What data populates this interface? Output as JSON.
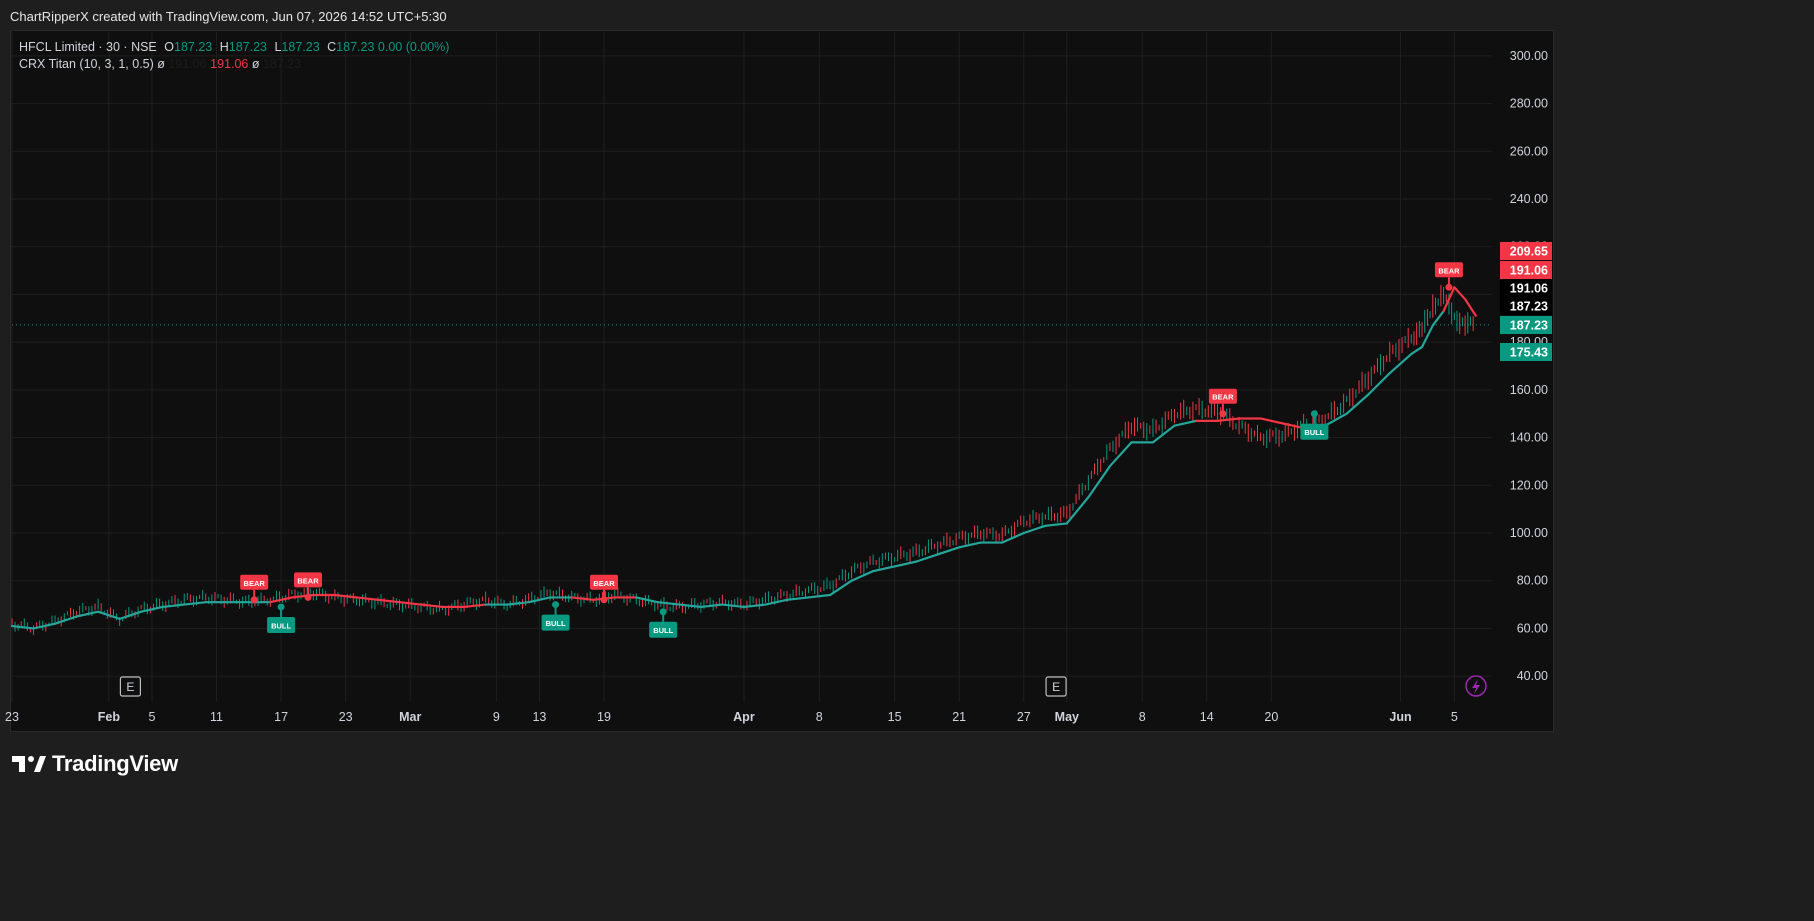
{
  "caption": "ChartRipperX created with TradingView.com, Jun 07, 2026 14:52 UTC+5:30",
  "legend": {
    "symbol": "HFCL Limited · 30 · NSE",
    "o_label": "O",
    "o": "187.23",
    "h_label": "H",
    "h": "187.23",
    "l_label": "L",
    "l": "187.23",
    "c_label": "C",
    "c": "187.23",
    "change": "0.00 (0.00%)",
    "indicator": "CRX Titan (10, 3, 1, 0.5)",
    "ind_sym1": "ø",
    "ind_v1": "191.06",
    "ind_v2": "191.06",
    "ind_sym2": "ø",
    "ind_v3": "187.23"
  },
  "footer": {
    "brand": "TradingView"
  },
  "colors": {
    "up": "#089981",
    "down": "#f23645",
    "bg": "#0f0f0f",
    "grid": "#1f1f1f",
    "text": "#d1d4dc"
  },
  "chart_data": {
    "type": "line",
    "symbol": "HFCL Limited",
    "interval": "30",
    "exchange": "NSE",
    "ylim": [
      30,
      310
    ],
    "y_ticks": [
      40,
      60,
      80,
      100,
      120,
      140,
      160,
      180,
      200,
      220,
      240,
      260,
      280,
      300
    ],
    "y_tick_labels": [
      "40.00",
      "60.00",
      "80.00",
      "100.00",
      "120.00",
      "140.00",
      "160.00",
      "180.00",
      "200.00",
      "220.00",
      "240.00",
      "260.00",
      "280.00",
      "300.00"
    ],
    "x_ticks": [
      {
        "label": "23",
        "t": 0,
        "bold": false
      },
      {
        "label": "Feb",
        "t": 9,
        "bold": true
      },
      {
        "label": "5",
        "t": 13,
        "bold": false
      },
      {
        "label": "11",
        "t": 19,
        "bold": false
      },
      {
        "label": "17",
        "t": 25,
        "bold": false
      },
      {
        "label": "23",
        "t": 31,
        "bold": false
      },
      {
        "label": "Mar",
        "t": 37,
        "bold": true
      },
      {
        "label": "9",
        "t": 45,
        "bold": false
      },
      {
        "label": "13",
        "t": 49,
        "bold": false
      },
      {
        "label": "19",
        "t": 55,
        "bold": false
      },
      {
        "label": "Apr",
        "t": 68,
        "bold": true
      },
      {
        "label": "8",
        "t": 75,
        "bold": false
      },
      {
        "label": "15",
        "t": 82,
        "bold": false
      },
      {
        "label": "21",
        "t": 88,
        "bold": false
      },
      {
        "label": "27",
        "t": 94,
        "bold": false
      },
      {
        "label": "May",
        "t": 98,
        "bold": true
      },
      {
        "label": "8",
        "t": 105,
        "bold": false
      },
      {
        "label": "14",
        "t": 111,
        "bold": false
      },
      {
        "label": "20",
        "t": 117,
        "bold": false
      },
      {
        "label": "Jun",
        "t": 129,
        "bold": true
      },
      {
        "label": "5",
        "t": 134,
        "bold": false
      }
    ],
    "price_series": {
      "name": "HFCL Limited",
      "t": [
        0,
        2,
        4,
        6,
        8,
        10,
        12,
        14,
        16,
        18,
        20,
        22,
        24,
        26,
        28,
        30,
        32,
        34,
        36,
        38,
        40,
        42,
        44,
        46,
        48,
        50,
        52,
        54,
        56,
        58,
        60,
        62,
        64,
        66,
        68,
        70,
        72,
        74,
        76,
        78,
        80,
        82,
        84,
        86,
        88,
        90,
        92,
        94,
        96,
        98,
        100,
        102,
        104,
        106,
        108,
        110,
        112,
        114,
        116,
        118,
        120,
        122,
        124,
        126,
        128,
        130,
        131,
        132,
        133,
        134,
        135,
        136
      ],
      "values": [
        62,
        60,
        63,
        67,
        69,
        64,
        68,
        70,
        72,
        73,
        72,
        71,
        72,
        74,
        75,
        73,
        72,
        71,
        70,
        69,
        68,
        70,
        72,
        70,
        72,
        75,
        73,
        72,
        74,
        72,
        70,
        69,
        70,
        71,
        70,
        72,
        74,
        76,
        78,
        84,
        88,
        90,
        92,
        95,
        98,
        100,
        99,
        105,
        107,
        108,
        122,
        135,
        145,
        143,
        150,
        152,
        151,
        145,
        140,
        141,
        145,
        148,
        155,
        165,
        175,
        182,
        185,
        195,
        200,
        190,
        188,
        187.23
      ]
    },
    "indicator_series": {
      "name": "CRX Titan (10, 3, 1, 0.5)",
      "t": [
        0,
        2,
        4,
        6,
        8,
        10,
        12,
        14,
        16,
        18,
        20,
        22,
        24,
        26,
        28,
        30,
        32,
        34,
        36,
        38,
        40,
        42,
        44,
        46,
        48,
        50,
        52,
        54,
        56,
        58,
        60,
        62,
        64,
        66,
        68,
        70,
        72,
        74,
        76,
        78,
        80,
        82,
        84,
        86,
        88,
        90,
        92,
        94,
        96,
        98,
        100,
        102,
        104,
        106,
        108,
        110,
        112,
        114,
        116,
        118,
        120,
        122,
        124,
        126,
        128,
        130,
        131,
        132,
        133,
        134,
        135,
        136
      ],
      "values": [
        61,
        60,
        62,
        65,
        67,
        64,
        67,
        69,
        70,
        71,
        71,
        71,
        71,
        73,
        74,
        74,
        73,
        72,
        71,
        70,
        69,
        69,
        70,
        70,
        71,
        73,
        73,
        72,
        73,
        73,
        71,
        70,
        69,
        70,
        69,
        70,
        72,
        73,
        74,
        80,
        84,
        86,
        88,
        91,
        94,
        96,
        96,
        100,
        103,
        104,
        115,
        128,
        138,
        138,
        145,
        147,
        147,
        148,
        148,
        146,
        144,
        145,
        150,
        158,
        167,
        175,
        178,
        187,
        193,
        203,
        198,
        191.06
      ],
      "trend": [
        "up",
        "up",
        "up",
        "up",
        "up",
        "up",
        "up",
        "up",
        "up",
        "up",
        "up",
        "up",
        "up",
        "dn",
        "dn",
        "dn",
        "dn",
        "dn",
        "dn",
        "dn",
        "dn",
        "dn",
        "dn",
        "up",
        "up",
        "up",
        "up",
        "dn",
        "dn",
        "dn",
        "up",
        "up",
        "up",
        "up",
        "up",
        "up",
        "up",
        "up",
        "up",
        "up",
        "up",
        "up",
        "up",
        "up",
        "up",
        "up",
        "up",
        "up",
        "up",
        "up",
        "up",
        "up",
        "up",
        "up",
        "up",
        "up",
        "dn",
        "dn",
        "dn",
        "dn",
        "dn",
        "up",
        "up",
        "up",
        "up",
        "up",
        "up",
        "up",
        "up",
        "dn",
        "dn",
        "dn"
      ]
    },
    "signals": [
      {
        "label": "BEAR",
        "t": 22.5,
        "value": 72,
        "kind": "bear"
      },
      {
        "label": "BULL",
        "t": 25,
        "value": 69,
        "kind": "bull"
      },
      {
        "label": "BEAR",
        "t": 27.5,
        "value": 73,
        "kind": "bear"
      },
      {
        "label": "BULL",
        "t": 50.5,
        "value": 70,
        "kind": "bull"
      },
      {
        "label": "BEAR",
        "t": 55,
        "value": 72,
        "kind": "bear"
      },
      {
        "label": "BULL",
        "t": 60.5,
        "value": 67,
        "kind": "bull"
      },
      {
        "label": "BEAR",
        "t": 112.5,
        "value": 150,
        "kind": "bear"
      },
      {
        "label": "BULL",
        "t": 121,
        "value": 150,
        "kind": "bull"
      },
      {
        "label": "BEAR",
        "t": 133.5,
        "value": 203,
        "kind": "bear"
      }
    ],
    "price_tags": [
      {
        "value": 209.65,
        "label": "209.65",
        "bg": "#f23645",
        "fg": "#ffffff"
      },
      {
        "value": 191.06,
        "label": "191.06",
        "bg": "#f23645",
        "fg": "#ffffff",
        "offset": 1
      },
      {
        "value": 191.06,
        "label": "191.06",
        "bg": "#000000",
        "fg": "#ffffff",
        "offset": 2
      },
      {
        "value": 187.23,
        "label": "187.23",
        "bg": "#000000",
        "fg": "#ffffff",
        "offset": 3
      },
      {
        "value": 187.23,
        "label": "187.23",
        "bg": "#089981",
        "fg": "#ffffff",
        "offset": 4
      },
      {
        "value": 175.43,
        "label": "175.43",
        "bg": "#089981",
        "fg": "#ffffff"
      }
    ],
    "last_price": 187.23,
    "event_markers": [
      {
        "label": "E",
        "t": 11
      },
      {
        "label": "E",
        "t": 97
      }
    ],
    "grid": true
  }
}
